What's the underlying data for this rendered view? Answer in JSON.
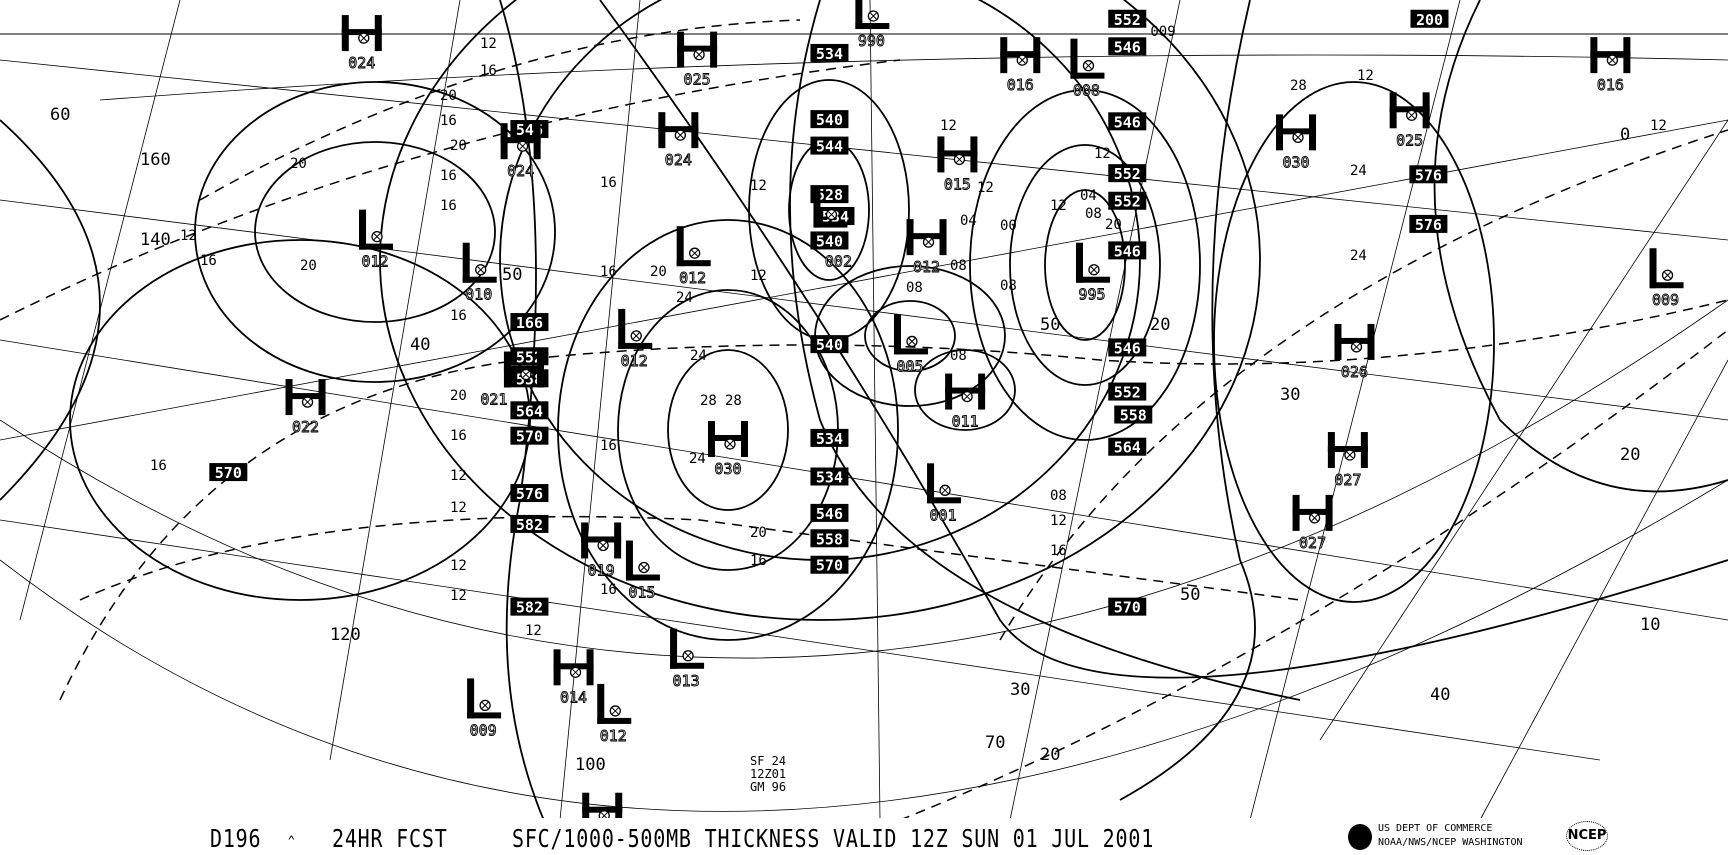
{
  "footer": {
    "chart_id": "D196",
    "caret": "^",
    "forecast": "24HR FCST",
    "title": "SFC/1000-500MB THICKNESS VALID 12Z SUN 01 JUL 2001",
    "agency_line1": "US DEPT OF COMMERCE",
    "agency_line2": "NOAA/NWS/NCEP WASHINGTON",
    "ncep_logo": "NCEP",
    "noaa_logo": "noaa-bird-logo"
  },
  "annotation": {
    "line1": "SF 24",
    "line2": "12Z01",
    "line3": "GM 96"
  },
  "pressure_centers": [
    {
      "type": "H",
      "value": "024"
    },
    {
      "type": "H",
      "value": "025"
    },
    {
      "type": "H",
      "value": "024"
    },
    {
      "type": "H",
      "value": "024"
    },
    {
      "type": "L",
      "value": "990"
    },
    {
      "type": "H",
      "value": "016"
    },
    {
      "type": "L",
      "value": "008"
    },
    {
      "type": "H",
      "value": "016"
    },
    {
      "type": "H",
      "value": "025"
    },
    {
      "type": "H",
      "value": "030"
    },
    {
      "type": "H",
      "value": "015"
    },
    {
      "type": "L",
      "value": "012"
    },
    {
      "type": "L",
      "value": "010"
    },
    {
      "type": "L",
      "value": "012"
    },
    {
      "type": "H",
      "value": "012"
    },
    {
      "type": "L",
      "value": "002"
    },
    {
      "type": "L",
      "value": "995"
    },
    {
      "type": "L",
      "value": "009"
    },
    {
      "type": "L",
      "value": "012"
    },
    {
      "type": "L",
      "value": "005"
    },
    {
      "type": "H",
      "value": "026"
    },
    {
      "type": "H",
      "value": "022"
    },
    {
      "type": "H",
      "value": "021"
    },
    {
      "type": "H",
      "value": "011"
    },
    {
      "type": "H",
      "value": "030"
    },
    {
      "type": "H",
      "value": "027"
    },
    {
      "type": "L",
      "value": "001"
    },
    {
      "type": "H",
      "value": "027"
    },
    {
      "type": "H",
      "value": "019"
    },
    {
      "type": "L",
      "value": "015"
    },
    {
      "type": "L",
      "value": "013"
    },
    {
      "type": "H",
      "value": "014"
    },
    {
      "type": "L",
      "value": "012"
    },
    {
      "type": "L",
      "value": "009"
    },
    {
      "type": "H",
      "value": ""
    }
  ],
  "thickness_labels": [
    "534",
    "540",
    "544",
    "528",
    "534",
    "540",
    "540",
    "534",
    "534",
    "546",
    "558",
    "570",
    "552",
    "546",
    "546",
    "552",
    "552",
    "546",
    "546",
    "552",
    "558",
    "564",
    "570",
    "576",
    "576",
    "200",
    "546",
    "552",
    "558",
    "564",
    "570",
    "576",
    "582",
    "582",
    "570",
    "166"
  ],
  "isobar_labels": [
    "12",
    "16",
    "20",
    "16",
    "20",
    "20",
    "16",
    "16",
    "20",
    "16",
    "12",
    "16",
    "20",
    "16",
    "12",
    "12",
    "16",
    "16",
    "20",
    "24",
    "24",
    "28",
    "28",
    "24",
    "20",
    "16",
    "12",
    "12",
    "08",
    "04",
    "00",
    "08",
    "12",
    "12",
    "08",
    "08",
    "04",
    "08",
    "12",
    "12",
    "08",
    "12",
    "16",
    "20",
    "12",
    "24",
    "24",
    "28",
    "12",
    "12",
    "12",
    "12",
    "16",
    "16",
    "16"
  ],
  "lat_lon_labels": [
    "160",
    "140",
    "120",
    "100",
    "70",
    "60",
    "50",
    "40",
    "50",
    "30",
    "30",
    "20",
    "20",
    "10",
    "40",
    "50",
    "0",
    "20"
  ],
  "pending_other": "009"
}
